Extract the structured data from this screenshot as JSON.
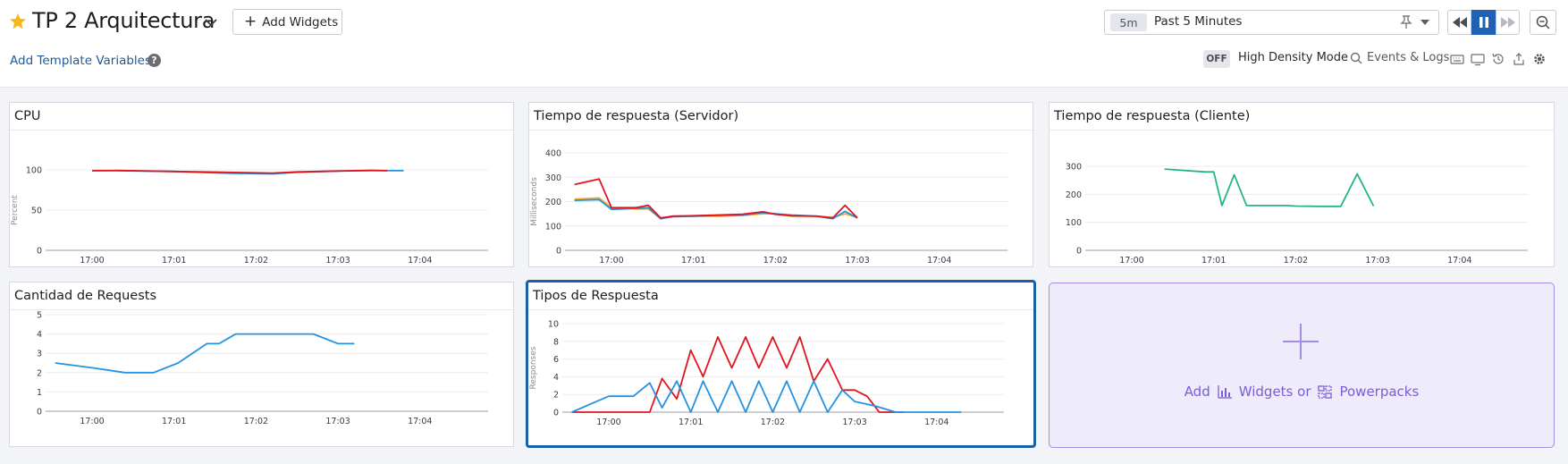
{
  "header": {
    "title": "TP 2 Arquitectura",
    "add_widgets_label": "Add Widgets",
    "template_variables_label": "Add Template Variables",
    "time_badge": "5m",
    "time_label": "Past 5 Minutes",
    "density_badge": "OFF",
    "density_label": "High Density Mode",
    "events_label": "Events & Logs"
  },
  "colors": {
    "red": "#e0151f",
    "blue": "#2592e0",
    "orange": "#f4a52b",
    "green": "#23b48a",
    "accent": "#1b5fa6",
    "purple": "#7c5cd6"
  },
  "x_ticks": [
    "17:00",
    "17:01",
    "17:02",
    "17:03",
    "17:04"
  ],
  "widgets": [
    {
      "title": "CPU",
      "chart_data": {
        "type": "line",
        "ylabel": "Percent",
        "yticks": [
          "0",
          "50",
          "100"
        ],
        "ylim": [
          0,
          100
        ],
        "series": [
          {
            "color": "#2592e0",
            "points": [
              [
                0,
                99
              ],
              [
                0.3,
                99
              ],
              [
                0.6,
                98.5
              ],
              [
                1,
                98
              ],
              [
                1.6,
                96
              ],
              [
                2.2,
                95
              ],
              [
                2.5,
                97
              ],
              [
                3,
                98.5
              ],
              [
                3.4,
                99
              ],
              [
                3.8,
                99
              ]
            ]
          },
          {
            "color": "#e0151f",
            "points": [
              [
                0,
                99
              ],
              [
                0.3,
                99.2
              ],
              [
                0.6,
                98.8
              ],
              [
                1,
                98
              ],
              [
                1.6,
                97
              ],
              [
                2.2,
                96
              ],
              [
                2.5,
                97.5
              ],
              [
                3,
                98.5
              ],
              [
                3.4,
                99.5
              ],
              [
                3.6,
                99
              ]
            ]
          }
        ]
      }
    },
    {
      "title": "Tiempo de respuesta (Servidor)",
      "chart_data": {
        "type": "line",
        "ylabel": "Milliseconds",
        "yticks": [
          "0",
          "100",
          "200",
          "300",
          "400"
        ],
        "ylim": [
          0,
          400
        ],
        "series": [
          {
            "color": "#f4a52b",
            "points": [
              [
                -0.45,
                210
              ],
              [
                -0.15,
                215
              ],
              [
                0,
                175
              ],
              [
                0.3,
                170
              ],
              [
                0.45,
                170
              ],
              [
                0.6,
                130
              ],
              [
                0.75,
                140
              ],
              [
                1,
                140
              ],
              [
                1.3,
                140
              ],
              [
                1.6,
                143
              ],
              [
                1.85,
                150
              ],
              [
                2,
                150
              ],
              [
                2.2,
                140
              ],
              [
                2.5,
                140
              ],
              [
                2.7,
                135
              ],
              [
                2.85,
                150
              ],
              [
                3,
                135
              ]
            ]
          },
          {
            "color": "#2592e0",
            "points": [
              [
                -0.45,
                205
              ],
              [
                -0.15,
                208
              ],
              [
                0,
                168
              ],
              [
                0.3,
                172
              ],
              [
                0.45,
                175
              ],
              [
                0.6,
                130
              ],
              [
                0.75,
                138
              ],
              [
                1,
                140
              ],
              [
                1.3,
                143
              ],
              [
                1.6,
                145
              ],
              [
                1.85,
                155
              ],
              [
                2,
                150
              ],
              [
                2.2,
                145
              ],
              [
                2.5,
                140
              ],
              [
                2.7,
                130
              ],
              [
                2.85,
                160
              ],
              [
                3,
                133
              ]
            ]
          },
          {
            "color": "#e0151f",
            "points": [
              [
                -0.45,
                270
              ],
              [
                -0.15,
                293
              ],
              [
                0,
                175
              ],
              [
                0.3,
                175
              ],
              [
                0.45,
                185
              ],
              [
                0.6,
                133
              ],
              [
                0.75,
                140
              ],
              [
                1,
                142
              ],
              [
                1.3,
                145
              ],
              [
                1.6,
                148
              ],
              [
                1.85,
                158
              ],
              [
                2,
                148
              ],
              [
                2.2,
                142
              ],
              [
                2.5,
                140
              ],
              [
                2.7,
                133
              ],
              [
                2.85,
                185
              ],
              [
                3,
                133
              ]
            ]
          }
        ]
      }
    },
    {
      "title": "Tiempo de respuesta (Cliente)",
      "chart_data": {
        "type": "line",
        "yticks": [
          "0",
          "100",
          "200",
          "300"
        ],
        "ylim": [
          0,
          300
        ],
        "series": [
          {
            "color": "#23b48a",
            "points": [
              [
                0.4,
                290
              ],
              [
                0.9,
                280
              ],
              [
                1,
                280
              ],
              [
                1.1,
                160
              ],
              [
                1.25,
                270
              ],
              [
                1.4,
                160
              ],
              [
                1.6,
                160
              ],
              [
                1.9,
                160
              ],
              [
                2,
                158
              ],
              [
                2.3,
                157
              ],
              [
                2.55,
                157
              ],
              [
                2.75,
                273
              ],
              [
                2.95,
                158
              ]
            ]
          }
        ]
      }
    },
    {
      "title": "Cantidad de Requests",
      "chart_data": {
        "type": "line",
        "yticks": [
          "0",
          "1",
          "2",
          "3",
          "4",
          "5"
        ],
        "ylim": [
          0,
          5
        ],
        "series": [
          {
            "color": "#2592e0",
            "points": [
              [
                -0.45,
                2.5
              ],
              [
                0,
                2.25
              ],
              [
                0.4,
                2
              ],
              [
                0.75,
                2
              ],
              [
                1.05,
                2.5
              ],
              [
                1.4,
                3.5
              ],
              [
                1.55,
                3.5
              ],
              [
                1.75,
                4
              ],
              [
                2,
                4
              ],
              [
                2.3,
                4
              ],
              [
                2.7,
                4
              ],
              [
                3,
                3.5
              ],
              [
                3.2,
                3.5
              ]
            ]
          }
        ]
      }
    },
    {
      "title": "Tipos de Respuesta",
      "chart_data": {
        "type": "line",
        "ylabel": "Responses",
        "yticks": [
          "0",
          "2",
          "4",
          "6",
          "8",
          "10"
        ],
        "ylim": [
          0,
          10
        ],
        "series": [
          {
            "color": "#e0151f",
            "points": [
              [
                -0.45,
                0
              ],
              [
                0.5,
                0
              ],
              [
                0.65,
                3.8
              ],
              [
                0.83,
                1.5
              ],
              [
                1,
                7
              ],
              [
                1.15,
                4
              ],
              [
                1.33,
                8.5
              ],
              [
                1.5,
                5
              ],
              [
                1.67,
                8.5
              ],
              [
                1.83,
                5
              ],
              [
                2,
                8.5
              ],
              [
                2.17,
                5
              ],
              [
                2.33,
                8.5
              ],
              [
                2.5,
                3.5
              ],
              [
                2.67,
                6
              ],
              [
                2.85,
                2.5
              ],
              [
                3,
                2.5
              ],
              [
                3.15,
                1.8
              ],
              [
                3.3,
                0
              ],
              [
                3.6,
                0
              ]
            ]
          },
          {
            "color": "#2592e0",
            "points": [
              [
                -0.45,
                0
              ],
              [
                -0.15,
                1.2
              ],
              [
                0,
                1.8
              ],
              [
                0.15,
                1.8
              ],
              [
                0.3,
                1.8
              ],
              [
                0.5,
                3.3
              ],
              [
                0.65,
                0.5
              ],
              [
                0.83,
                3.5
              ],
              [
                1,
                0
              ],
              [
                1.15,
                3.5
              ],
              [
                1.33,
                0
              ],
              [
                1.5,
                3.5
              ],
              [
                1.67,
                0
              ],
              [
                1.83,
                3.5
              ],
              [
                2,
                0
              ],
              [
                2.17,
                3.5
              ],
              [
                2.33,
                0
              ],
              [
                2.5,
                3.5
              ],
              [
                2.67,
                0
              ],
              [
                2.85,
                2.5
              ],
              [
                3,
                1.2
              ],
              [
                3.25,
                0.7
              ],
              [
                3.5,
                0
              ],
              [
                4.3,
                0
              ]
            ]
          }
        ]
      }
    }
  ],
  "add_panel": {
    "add_label": "Add",
    "widgets_label": "Widgets or",
    "powerpacks_label": "Powerpacks"
  }
}
